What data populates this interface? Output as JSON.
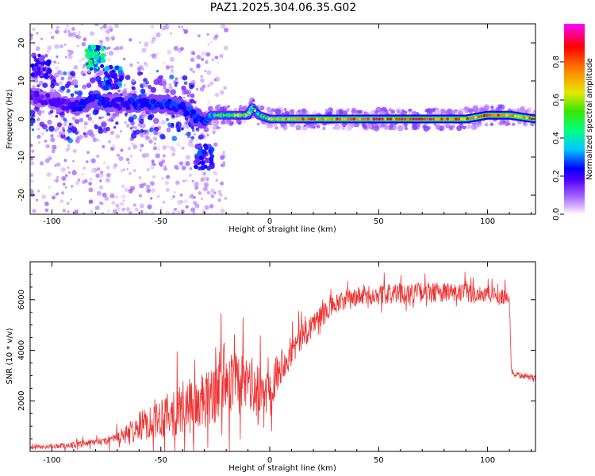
{
  "figure": {
    "title": "PAZ1.2025.304.06.35.G02"
  },
  "colors": {
    "snr_line": "#ee3333",
    "colormap": [
      "#ffffff",
      "#9c5cff",
      "#5500ff",
      "#0000ff",
      "#00c8ff",
      "#00ff80",
      "#39e600",
      "#e6e600",
      "#ff8000",
      "#ff0000",
      "#ff00ff"
    ]
  },
  "chart_data": [
    {
      "type": "heatmap",
      "title": "",
      "xlabel": "Height of straight line (km)",
      "ylabel": "Frequency (Hz)",
      "xlim": [
        -110,
        122
      ],
      "ylim": [
        -25,
        25
      ],
      "x_ticks": [
        -100,
        -50,
        0,
        50,
        100
      ],
      "y_ticks": [
        -20,
        -10,
        0,
        10,
        20
      ],
      "colorbar": {
        "label": "Normalized spectral amplitude",
        "range": [
          0,
          1
        ],
        "ticks": [
          "0.0",
          "0.2",
          "0.4",
          "0.6",
          "0.8"
        ],
        "tick_values": [
          0.0,
          0.2,
          0.4,
          0.6,
          0.8
        ]
      },
      "ridge": {
        "description_points_x": [
          -110,
          -100,
          -90,
          -80,
          -70,
          -60,
          -50,
          -40,
          -35,
          -30,
          -27,
          -20,
          -10,
          -8,
          -5,
          0,
          10,
          20,
          30,
          40,
          50,
          60,
          70,
          80,
          90,
          100,
          110,
          122
        ],
        "frequency_hz": [
          6,
          5,
          3,
          5,
          4,
          4,
          4,
          3,
          1,
          -1,
          1,
          1,
          1,
          3,
          1,
          0,
          0,
          0,
          0,
          0,
          0,
          0,
          0,
          0,
          0,
          1,
          1,
          0
        ],
        "peak_amplitude": [
          0.35,
          0.35,
          0.4,
          0.5,
          0.4,
          0.5,
          0.5,
          0.5,
          0.5,
          0.5,
          0.6,
          0.6,
          0.7,
          0.6,
          0.6,
          0.7,
          0.8,
          0.85,
          0.9,
          0.85,
          0.9,
          0.9,
          0.9,
          0.9,
          0.9,
          0.9,
          0.85,
          0.85
        ]
      },
      "scatter_clusters": [
        {
          "x": -80,
          "freq": 16,
          "amplitude": 0.5
        },
        {
          "x": -72,
          "freq": 11,
          "amplitude": 0.4
        },
        {
          "x": -105,
          "freq": 14,
          "amplitude": 0.25
        },
        {
          "x": -30,
          "freq": -10,
          "amplitude": 0.3
        }
      ]
    },
    {
      "type": "line",
      "title": "",
      "xlabel": "Height of straight line (km)",
      "ylabel": "SNR (10 * v/v)",
      "xlim": [
        -110,
        122
      ],
      "ylim": [
        0,
        7500
      ],
      "x_ticks": [
        -100,
        -50,
        0,
        50,
        100
      ],
      "y_ticks": [
        2000,
        4000,
        6000
      ],
      "trend_x": [
        -110,
        -90,
        -75,
        -65,
        -55,
        -45,
        -35,
        -28,
        -24,
        -20,
        -15,
        -10,
        -5,
        0,
        5,
        10,
        20,
        30,
        40,
        50,
        60,
        70,
        80,
        90,
        100,
        108,
        110,
        111,
        115,
        122
      ],
      "trend_y": [
        150,
        250,
        400,
        700,
        1200,
        1600,
        1800,
        2000,
        2800,
        3000,
        2600,
        2800,
        2200,
        2600,
        3400,
        4000,
        5100,
        5800,
        6100,
        6200,
        6250,
        6300,
        6300,
        6250,
        6200,
        6150,
        6100,
        3100,
        3000,
        2900
      ],
      "noise_amplitude_y": [
        80,
        150,
        200,
        500,
        900,
        1300,
        1400,
        1500,
        2000,
        1800,
        1500,
        1500,
        1400,
        1200,
        900,
        800,
        600,
        500,
        500,
        500,
        500,
        500,
        500,
        500,
        450,
        450,
        400,
        200,
        150,
        150
      ]
    }
  ]
}
